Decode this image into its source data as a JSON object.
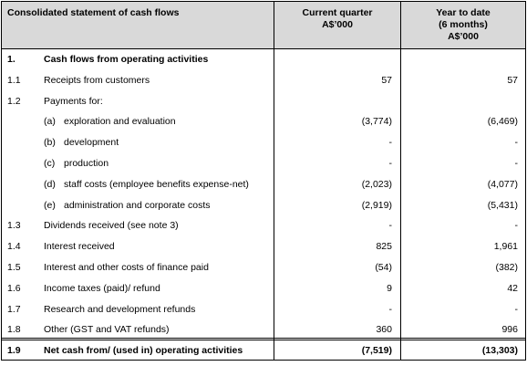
{
  "header": {
    "title": "Consolidated statement of cash flows",
    "current_lines": [
      "Current quarter",
      "A$’000"
    ],
    "ytd_lines": [
      "Year to date",
      "(6 months)",
      "A$’000"
    ]
  },
  "rows": [
    {
      "num": "1.",
      "label": "Cash flows from operating activities",
      "bold": true
    },
    {
      "num": "1.1",
      "label": "Receipts from customers",
      "current": "57",
      "ytd": "57"
    },
    {
      "num": "1.2",
      "label": "Payments for:"
    },
    {
      "sub": "(a)",
      "label": "exploration and evaluation",
      "current": "(3,774)",
      "ytd": "(6,469)"
    },
    {
      "sub": "(b)",
      "label": "development",
      "current": "-",
      "ytd": "-"
    },
    {
      "sub": "(c)",
      "label": "production",
      "current": "-",
      "ytd": "-"
    },
    {
      "sub": "(d)",
      "label": "staff costs (employee benefits expense-net)",
      "current": "(2,023)",
      "ytd": "(4,077)"
    },
    {
      "sub": "(e)",
      "label": "administration and corporate costs",
      "current": "(2,919)",
      "ytd": "(5,431)"
    },
    {
      "num": "1.3",
      "label": "Dividends received (see note 3)",
      "current": "-",
      "ytd": "-"
    },
    {
      "num": "1.4",
      "label": "Interest received",
      "current": "825",
      "ytd": "1,961"
    },
    {
      "num": "1.5",
      "label": "Interest and other costs of finance paid",
      "current": "(54)",
      "ytd": "(382)"
    },
    {
      "num": "1.6",
      "label": "Income taxes (paid)/ refund",
      "current": "9",
      "ytd": "42"
    },
    {
      "num": "1.7",
      "label": "Research and development refunds",
      "current": "-",
      "ytd": "-"
    },
    {
      "num": "1.8",
      "label": "Other (GST and VAT refunds)",
      "current": "360",
      "ytd": "996"
    },
    {
      "num": "1.9",
      "label": "Net cash from/ (used in) operating activities",
      "current": "(7,519)",
      "ytd": "(13,303)",
      "bold": true
    }
  ]
}
